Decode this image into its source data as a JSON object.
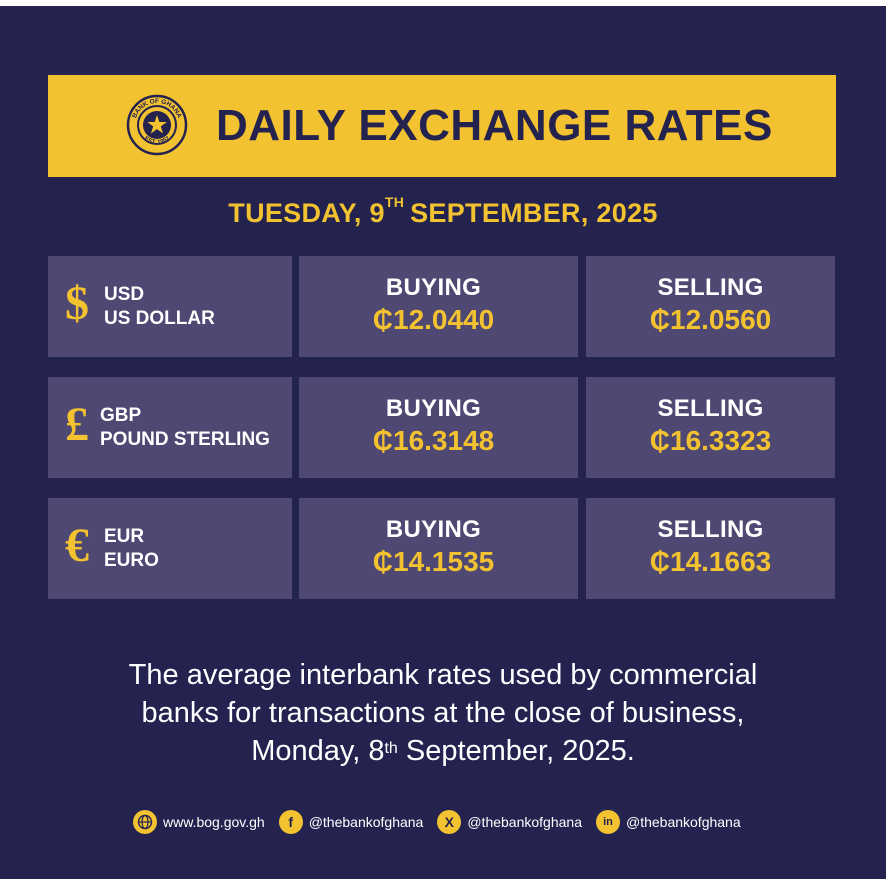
{
  "banner": {
    "title": "DAILY EXCHANGE RATES",
    "seal_text_top": "BANK OF GHANA",
    "seal_text_bottom": "EST. 1957"
  },
  "date": {
    "weekday": "TUESDAY, 9",
    "ordinal": "TH",
    "rest": "SEPTEMBER, 2025"
  },
  "rates": [
    {
      "symbol": "$",
      "code": "USD",
      "name": "US DOLLAR",
      "buying_label": "BUYING",
      "buying": "₵12.0440",
      "selling_label": "SELLING",
      "selling": "₵12.0560"
    },
    {
      "symbol": "£",
      "code": "GBP",
      "name": "POUND STERLING",
      "buying_label": "BUYING",
      "buying": "₵16.3148",
      "selling_label": "SELLING",
      "selling": "₵16.3323"
    },
    {
      "symbol": "€",
      "code": "EUR",
      "name": "EURO",
      "buying_label": "BUYING",
      "buying": "₵14.1535",
      "selling_label": "SELLING",
      "selling": "₵14.1663"
    }
  ],
  "footnote": {
    "line1": "The average interbank rates used by commercial",
    "line2": "banks for transactions at the close of business,",
    "line3_pre": "Monday, 8",
    "line3_ordinal": "th",
    "line3_post": " September, 2025."
  },
  "footer": {
    "website": "www.bog.gov.gh",
    "facebook": "@thebankofghana",
    "x": "@thebankofghana",
    "linkedin": "@thebankofghana",
    "icons": [
      "globe-icon",
      "facebook-icon",
      "x-icon",
      "linkedin-icon"
    ]
  },
  "colors": {
    "background": "#24224f",
    "accent": "#f2c230",
    "cell": "#4e4872"
  }
}
